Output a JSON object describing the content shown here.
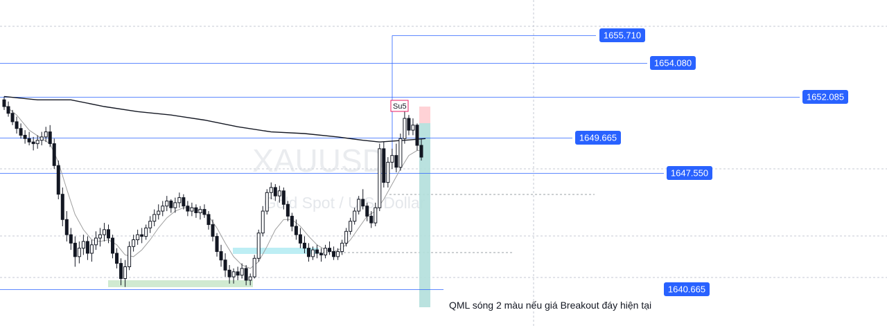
{
  "chart_data": {
    "type": "candlestick",
    "symbol": "XAUUSD",
    "symbol_description": "Gold Spot / U.S. Dollar",
    "ylim": [
      1638.9,
      1657.0
    ],
    "candles": [
      [
        1651.9,
        1652.1,
        1651.3,
        1651.5
      ],
      [
        1651.5,
        1651.8,
        1650.9,
        1651.1
      ],
      [
        1651.1,
        1651.3,
        1650.4,
        1650.6
      ],
      [
        1650.6,
        1650.9,
        1649.9,
        1650.2
      ],
      [
        1650.2,
        1650.5,
        1649.6,
        1649.8
      ],
      [
        1649.8,
        1650.1,
        1649.3,
        1649.6
      ],
      [
        1649.6,
        1650.0,
        1649.2,
        1649.4
      ],
      [
        1649.4,
        1649.7,
        1648.9,
        1649.3
      ],
      [
        1649.3,
        1649.8,
        1649.0,
        1649.5
      ],
      [
        1649.5,
        1650.0,
        1649.2,
        1649.7
      ],
      [
        1649.7,
        1650.3,
        1649.4,
        1650.0
      ],
      [
        1650.0,
        1650.4,
        1649.1,
        1649.3
      ],
      [
        1649.3,
        1649.6,
        1647.8,
        1648.0
      ],
      [
        1648.0,
        1648.3,
        1646.0,
        1646.3
      ],
      [
        1646.3,
        1646.7,
        1644.4,
        1644.8
      ],
      [
        1644.8,
        1645.3,
        1643.5,
        1643.9
      ],
      [
        1643.9,
        1644.3,
        1643.0,
        1643.4
      ],
      [
        1643.4,
        1643.8,
        1642.0,
        1642.6
      ],
      [
        1642.6,
        1643.5,
        1642.2,
        1643.1
      ],
      [
        1643.1,
        1643.9,
        1642.7,
        1643.5
      ],
      [
        1643.5,
        1643.8,
        1642.4,
        1642.8
      ],
      [
        1642.8,
        1643.6,
        1642.3,
        1643.3
      ],
      [
        1643.3,
        1644.1,
        1643.0,
        1643.7
      ],
      [
        1643.7,
        1644.3,
        1643.2,
        1643.9
      ],
      [
        1643.9,
        1644.6,
        1643.5,
        1644.2
      ],
      [
        1644.2,
        1644.5,
        1643.4,
        1643.7
      ],
      [
        1643.7,
        1643.9,
        1642.5,
        1642.8
      ],
      [
        1642.8,
        1643.1,
        1641.9,
        1642.2
      ],
      [
        1642.2,
        1642.5,
        1640.9,
        1641.3
      ],
      [
        1641.3,
        1642.4,
        1640.8,
        1642.0
      ],
      [
        1642.0,
        1643.5,
        1641.8,
        1643.2
      ],
      [
        1643.2,
        1643.9,
        1642.9,
        1643.6
      ],
      [
        1643.6,
        1644.2,
        1643.3,
        1643.9
      ],
      [
        1643.9,
        1644.3,
        1643.4,
        1643.8
      ],
      [
        1643.8,
        1644.5,
        1643.6,
        1644.3
      ],
      [
        1644.3,
        1645.0,
        1644.0,
        1644.7
      ],
      [
        1644.7,
        1645.4,
        1644.4,
        1645.1
      ],
      [
        1645.1,
        1645.7,
        1644.8,
        1645.3
      ],
      [
        1645.3,
        1645.9,
        1645.0,
        1645.6
      ],
      [
        1645.6,
        1646.2,
        1645.3,
        1645.9
      ],
      [
        1645.9,
        1646.0,
        1645.2,
        1645.5
      ],
      [
        1645.5,
        1646.1,
        1645.2,
        1645.8
      ],
      [
        1645.8,
        1646.4,
        1645.5,
        1646.1
      ],
      [
        1646.1,
        1646.3,
        1645.4,
        1645.6
      ],
      [
        1645.6,
        1645.9,
        1645.0,
        1645.3
      ],
      [
        1645.3,
        1645.8,
        1645.0,
        1645.5
      ],
      [
        1645.5,
        1645.7,
        1644.9,
        1645.2
      ],
      [
        1645.2,
        1645.6,
        1644.8,
        1645.4
      ],
      [
        1645.4,
        1645.7,
        1644.9,
        1645.1
      ],
      [
        1645.1,
        1645.3,
        1644.2,
        1644.5
      ],
      [
        1644.5,
        1644.8,
        1643.5,
        1643.8
      ],
      [
        1643.8,
        1644.0,
        1642.6,
        1642.9
      ],
      [
        1642.9,
        1643.3,
        1642.0,
        1642.4
      ],
      [
        1642.4,
        1642.8,
        1641.4,
        1641.8
      ],
      [
        1641.8,
        1642.1,
        1641.0,
        1641.4
      ],
      [
        1641.4,
        1641.9,
        1641.0,
        1641.7
      ],
      [
        1641.7,
        1642.0,
        1641.2,
        1641.5
      ],
      [
        1641.5,
        1642.2,
        1641.3,
        1641.9
      ],
      [
        1641.9,
        1642.1,
        1640.9,
        1641.2
      ],
      [
        1641.2,
        1641.6,
        1640.9,
        1641.4
      ],
      [
        1641.4,
        1642.7,
        1641.3,
        1642.5
      ],
      [
        1642.5,
        1644.2,
        1642.3,
        1644.0
      ],
      [
        1644.0,
        1645.6,
        1643.8,
        1645.3
      ],
      [
        1645.3,
        1646.6,
        1645.1,
        1646.4
      ],
      [
        1646.4,
        1647.0,
        1646.0,
        1646.7
      ],
      [
        1646.7,
        1646.9,
        1645.9,
        1646.2
      ],
      [
        1646.2,
        1646.8,
        1645.8,
        1646.5
      ],
      [
        1646.5,
        1646.7,
        1645.4,
        1645.7
      ],
      [
        1645.7,
        1645.9,
        1644.7,
        1645.0
      ],
      [
        1645.0,
        1645.2,
        1644.1,
        1644.4
      ],
      [
        1644.4,
        1644.8,
        1643.6,
        1643.9
      ],
      [
        1643.9,
        1644.3,
        1643.1,
        1643.4
      ],
      [
        1643.4,
        1643.8,
        1642.8,
        1643.1
      ],
      [
        1643.1,
        1643.4,
        1642.3,
        1642.6
      ],
      [
        1642.6,
        1643.2,
        1642.4,
        1643.0
      ],
      [
        1643.0,
        1643.3,
        1642.5,
        1642.8
      ],
      [
        1642.8,
        1643.1,
        1642.3,
        1642.7
      ],
      [
        1642.7,
        1643.3,
        1642.5,
        1643.1
      ],
      [
        1643.1,
        1643.5,
        1642.7,
        1642.9
      ],
      [
        1642.9,
        1643.2,
        1642.4,
        1642.6
      ],
      [
        1642.6,
        1643.1,
        1642.4,
        1642.9
      ],
      [
        1642.9,
        1643.6,
        1642.7,
        1643.4
      ],
      [
        1643.4,
        1644.3,
        1643.2,
        1644.1
      ],
      [
        1644.1,
        1644.9,
        1643.9,
        1644.7
      ],
      [
        1644.7,
        1645.5,
        1644.5,
        1645.3
      ],
      [
        1645.3,
        1646.2,
        1645.1,
        1646.0
      ],
      [
        1646.0,
        1646.6,
        1645.4,
        1645.6
      ],
      [
        1645.6,
        1645.8,
        1644.7,
        1645.0
      ],
      [
        1645.0,
        1645.3,
        1644.3,
        1644.6
      ],
      [
        1644.6,
        1645.8,
        1644.4,
        1645.5
      ],
      [
        1645.5,
        1649.3,
        1645.3,
        1649.0
      ],
      [
        1649.0,
        1649.4,
        1646.7,
        1647.0
      ],
      [
        1647.0,
        1648.5,
        1646.7,
        1648.2
      ],
      [
        1648.2,
        1649.0,
        1647.8,
        1648.6
      ],
      [
        1648.6,
        1649.3,
        1647.6,
        1647.9
      ],
      [
        1647.9,
        1649.9,
        1647.7,
        1649.6
      ],
      [
        1649.6,
        1651.2,
        1649.3,
        1650.8
      ],
      [
        1650.8,
        1651.0,
        1649.8,
        1650.1
      ],
      [
        1650.1,
        1650.8,
        1649.8,
        1650.4
      ],
      [
        1650.4,
        1650.5,
        1648.9,
        1649.2
      ],
      [
        1649.2,
        1649.6,
        1648.3,
        1648.5
      ]
    ],
    "ma_fast": [
      [
        0,
        1651.6
      ],
      [
        3,
        1651.0
      ],
      [
        6,
        1650.1
      ],
      [
        9,
        1649.6
      ],
      [
        11,
        1649.3
      ],
      [
        13,
        1648.2
      ],
      [
        15,
        1646.6
      ],
      [
        17,
        1645.1
      ],
      [
        19,
        1644.2
      ],
      [
        21,
        1643.6
      ],
      [
        23,
        1643.5
      ],
      [
        25,
        1643.6
      ],
      [
        27,
        1643.3
      ],
      [
        29,
        1642.7
      ],
      [
        31,
        1642.6
      ],
      [
        33,
        1643.0
      ],
      [
        35,
        1643.6
      ],
      [
        37,
        1644.3
      ],
      [
        39,
        1644.9
      ],
      [
        41,
        1645.3
      ],
      [
        43,
        1645.5
      ],
      [
        45,
        1645.5
      ],
      [
        47,
        1645.3
      ],
      [
        49,
        1645.0
      ],
      [
        51,
        1644.3
      ],
      [
        53,
        1643.4
      ],
      [
        55,
        1642.6
      ],
      [
        57,
        1642.1
      ],
      [
        59,
        1641.9
      ],
      [
        61,
        1642.3
      ],
      [
        63,
        1643.2
      ],
      [
        65,
        1644.2
      ],
      [
        67,
        1644.8
      ],
      [
        69,
        1644.8
      ],
      [
        71,
        1644.4
      ],
      [
        73,
        1643.8
      ],
      [
        75,
        1643.3
      ],
      [
        77,
        1643.0
      ],
      [
        79,
        1642.9
      ],
      [
        81,
        1643.1
      ],
      [
        83,
        1643.6
      ],
      [
        85,
        1644.3
      ],
      [
        87,
        1645.0
      ],
      [
        89,
        1645.3
      ],
      [
        91,
        1646.0
      ],
      [
        93,
        1646.9
      ],
      [
        95,
        1647.8
      ],
      [
        97,
        1648.6
      ],
      [
        99,
        1648.9
      ],
      [
        100,
        1648.9
      ]
    ],
    "ma_slow": [
      [
        0,
        1652.1
      ],
      [
        8,
        1651.9
      ],
      [
        16,
        1651.9
      ],
      [
        24,
        1651.5
      ],
      [
        32,
        1651.2
      ],
      [
        40,
        1651.0
      ],
      [
        48,
        1650.7
      ],
      [
        56,
        1650.3
      ],
      [
        64,
        1650.0
      ],
      [
        72,
        1649.9
      ],
      [
        80,
        1649.7
      ],
      [
        86,
        1649.5
      ],
      [
        90,
        1649.4
      ],
      [
        96,
        1649.5
      ],
      [
        101,
        1649.6
      ]
    ],
    "levels": [
      {
        "label": "1655.710",
        "value": 1655.71,
        "color": "#2962ff"
      },
      {
        "label": "1654.080",
        "value": 1654.08,
        "color": "#2962ff"
      },
      {
        "label": "1652.085",
        "value": 1652.085,
        "color": "#2962ff"
      },
      {
        "label": "1649.665",
        "value": 1649.665,
        "color": "#2962ff"
      },
      {
        "label": "1647.550",
        "value": 1647.55,
        "color": "#2962ff"
      },
      {
        "label": "1640.665",
        "value": 1640.665,
        "color": "#2962ff"
      }
    ],
    "annotation": "QML sóng 2 màu nếu giá Breakout đáy hiện tại",
    "marker_label": "Su5",
    "up_color": "#26a69a",
    "down_color": "#ef5350",
    "candle_color": "#131722",
    "grid": "dashed"
  }
}
